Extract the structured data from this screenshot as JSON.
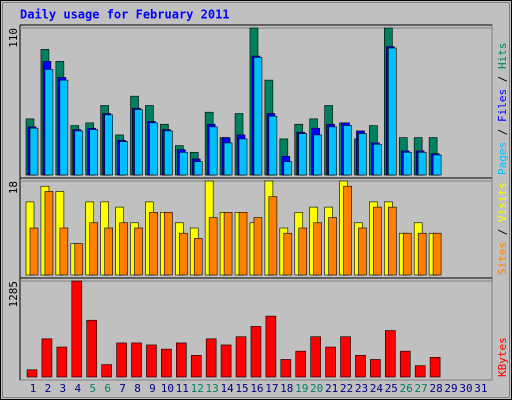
{
  "chart_data": [
    {
      "type": "bar",
      "title": "Daily usage for February 2011",
      "ylim": [
        0,
        110
      ],
      "yticks": [
        110
      ],
      "legend_separator": " / ",
      "series": [
        {
          "name": "Hits",
          "color": "#008060",
          "values": [
            42,
            94,
            85,
            37,
            39,
            52,
            30,
            59,
            52,
            38,
            22,
            17,
            47,
            28,
            46,
            110,
            71,
            27,
            38,
            42,
            52,
            39,
            27,
            37,
            110,
            28,
            28,
            28,
            0,
            0,
            0
          ]
        },
        {
          "name": "Files",
          "color": "#0000ff",
          "values": [
            36,
            85,
            73,
            34,
            35,
            46,
            26,
            50,
            40,
            34,
            19,
            12,
            38,
            28,
            30,
            89,
            46,
            14,
            32,
            35,
            38,
            39,
            33,
            24,
            96,
            18,
            18,
            16,
            0,
            0,
            0
          ]
        },
        {
          "name": "Pages",
          "color": "#00c0ff",
          "values": [
            35,
            79,
            71,
            33,
            34,
            45,
            25,
            49,
            39,
            33,
            17,
            10,
            36,
            24,
            27,
            88,
            44,
            10,
            31,
            30,
            36,
            37,
            31,
            23,
            95,
            17,
            17,
            15,
            0,
            0,
            0
          ]
        }
      ]
    },
    {
      "type": "bar",
      "ylim": [
        0,
        18
      ],
      "yticks": [
        18
      ],
      "legend_separator": " / ",
      "series": [
        {
          "name": "Visits",
          "color": "#ffff00",
          "values": [
            14,
            17,
            16,
            6,
            14,
            14,
            13,
            10,
            14,
            12,
            10,
            9,
            18,
            12,
            12,
            10,
            18,
            9,
            12,
            13,
            13,
            18,
            10,
            14,
            14,
            8,
            10,
            8,
            0,
            0,
            0
          ]
        },
        {
          "name": "Sites",
          "color": "#ff8000",
          "values": [
            9,
            16,
            9,
            6,
            10,
            9,
            10,
            9,
            12,
            12,
            8,
            7,
            11,
            12,
            12,
            11,
            15,
            8,
            9,
            10,
            11,
            17,
            9,
            13,
            13,
            8,
            8,
            8,
            0,
            0,
            0
          ]
        }
      ]
    },
    {
      "type": "bar",
      "ylim": [
        0,
        1285
      ],
      "yticks": [
        1285
      ],
      "legend_separator": " / ",
      "categories": [
        "1",
        "2",
        "3",
        "4",
        "5",
        "6",
        "7",
        "8",
        "9",
        "10",
        "11",
        "12",
        "13",
        "14",
        "15",
        "16",
        "17",
        "18",
        "19",
        "20",
        "21",
        "22",
        "23",
        "24",
        "25",
        "26",
        "27",
        "28",
        "29",
        "30",
        "31"
      ],
      "category_colors": [
        "#000080",
        "#000080",
        "#000080",
        "#000080",
        "#008060",
        "#008060",
        "#000080",
        "#000080",
        "#000080",
        "#000080",
        "#000080",
        "#008060",
        "#008060",
        "#000080",
        "#000080",
        "#000080",
        "#000080",
        "#000080",
        "#008060",
        "#008060",
        "#000080",
        "#000080",
        "#000080",
        "#000080",
        "#000080",
        "#008060",
        "#008060",
        "#000080",
        "#000080",
        "#000080",
        "#000080"
      ],
      "series": [
        {
          "name": "KBytes",
          "color": "#ff0000",
          "values": [
            97,
            511,
            401,
            1285,
            760,
            166,
            456,
            456,
            429,
            373,
            456,
            290,
            511,
            429,
            539,
            677,
            815,
            235,
            346,
            539,
            401,
            539,
            290,
            235,
            622,
            346,
            152,
            263,
            0,
            0,
            0
          ]
        }
      ]
    }
  ]
}
